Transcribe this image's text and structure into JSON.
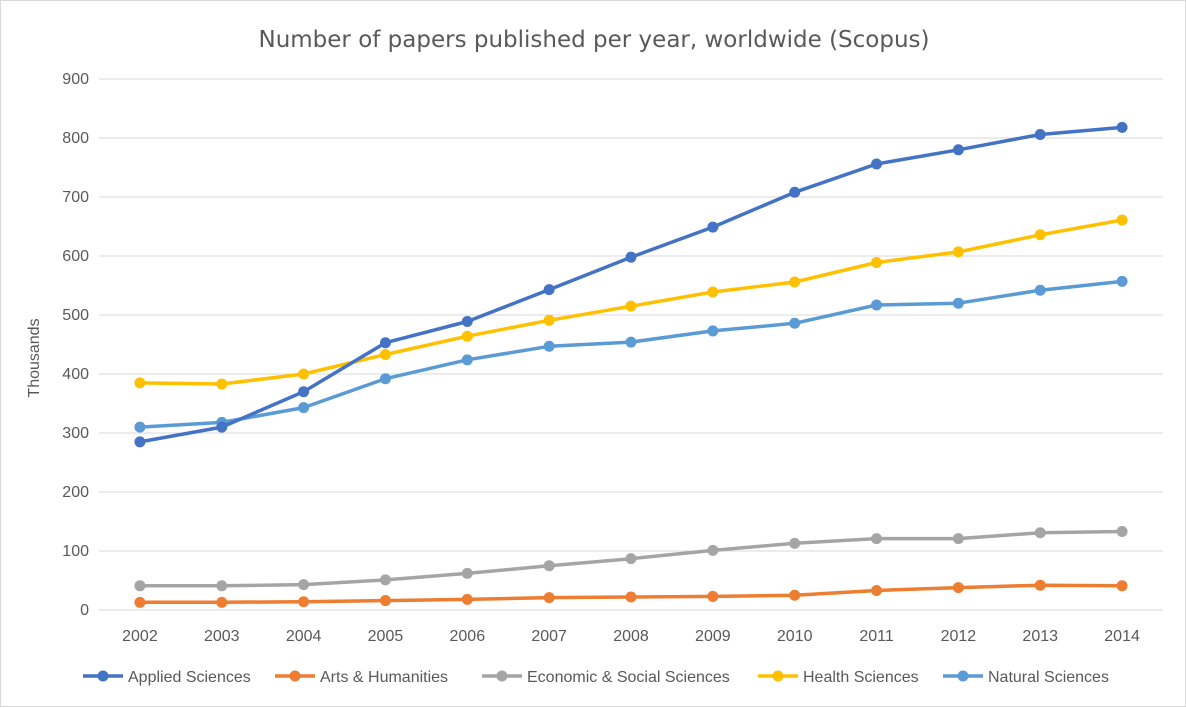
{
  "chart_data": {
    "type": "line",
    "title": "Number of papers published per year, worldwide (Scopus)",
    "xlabel": "",
    "ylabel": "Thousands",
    "ylim": [
      0,
      900
    ],
    "yticks": [
      0,
      100,
      200,
      300,
      400,
      500,
      600,
      700,
      800,
      900
    ],
    "grid": true,
    "legend": "bottom",
    "categories": [
      "2002",
      "2003",
      "2004",
      "2005",
      "2006",
      "2007",
      "2008",
      "2009",
      "2010",
      "2011",
      "2012",
      "2013",
      "2014"
    ],
    "series": [
      {
        "name": "Applied Sciences",
        "color": "#4472C4",
        "values": [
          285,
          310,
          370,
          453,
          489,
          543,
          598,
          649,
          708,
          756,
          780,
          806,
          818
        ]
      },
      {
        "name": "Arts & Humanities",
        "color": "#ED7D31",
        "values": [
          13,
          13,
          14,
          16,
          18,
          21,
          22,
          23,
          25,
          33,
          38,
          42,
          41
        ]
      },
      {
        "name": "Economic & Social Sciences",
        "color": "#A5A5A5",
        "values": [
          41,
          41,
          43,
          51,
          62,
          75,
          87,
          101,
          113,
          121,
          121,
          131,
          133
        ]
      },
      {
        "name": "Health Sciences",
        "color": "#FFC000",
        "values": [
          385,
          383,
          400,
          433,
          464,
          491,
          515,
          539,
          556,
          589,
          607,
          636,
          661
        ]
      },
      {
        "name": "Natural Sciences",
        "color": "#5B9BD5",
        "values": [
          310,
          318,
          343,
          392,
          424,
          447,
          454,
          473,
          486,
          517,
          520,
          542,
          557
        ]
      }
    ]
  }
}
